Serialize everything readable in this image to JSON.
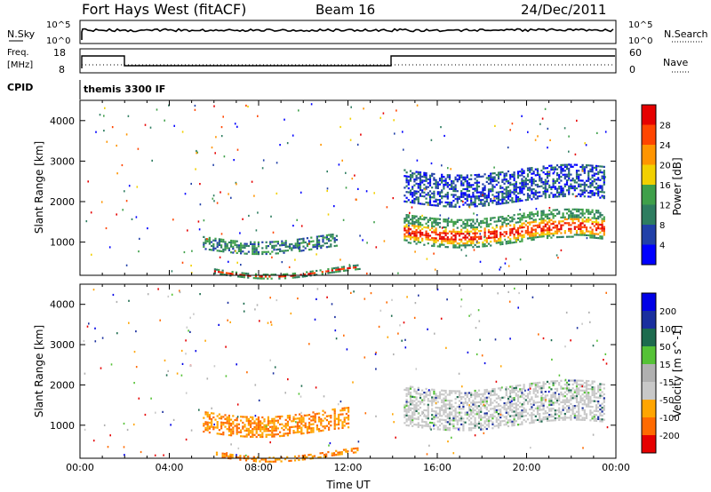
{
  "header": {
    "station": "Fort Hays West (fitACF)",
    "beam": "Beam 16",
    "date": "24/Dec/2011"
  },
  "noise_panel": {
    "left_label": "N.Sky",
    "left_ticks": [
      "10^5",
      "10^0"
    ],
    "right_label": "N.Search",
    "right_ticks": [
      "10^5",
      "10^0"
    ]
  },
  "freq_panel": {
    "left_label_1": "Freq.",
    "left_label_2": "[MHz]",
    "left_ticks": [
      "18",
      "8"
    ],
    "right_label": "Nave",
    "right_ticks": [
      "60",
      "0"
    ]
  },
  "cpid": {
    "label": "CPID",
    "value": "themis 3300 IF"
  },
  "colors": {
    "power": [
      "#0000ff",
      "#2140a8",
      "#2e7d60",
      "#3fa04a",
      "#f2d000",
      "#ff9500",
      "#ff4500",
      "#e60000"
    ],
    "velocity": [
      "#e60000",
      "#ff6a00",
      "#ffa500",
      "#c8c8c8",
      "#b0b0b0",
      "#55c236",
      "#1d6b4e",
      "#1a2f9e",
      "#0000e6"
    ]
  },
  "chart_data": [
    {
      "type": "heatmap",
      "name": "power",
      "ylabel": "Slant Range [km]",
      "colorbar_label": "Power [dB]",
      "colorbar_ticks": [
        "28",
        "24",
        "20",
        "16",
        "12",
        "8",
        "4"
      ],
      "ylim": [
        180,
        4500
      ],
      "y_ticks": [
        "1000",
        "2000",
        "3000",
        "4000"
      ],
      "xlim": [
        0,
        24
      ],
      "x_ticks": [
        "00:00",
        "04:00",
        "08:00",
        "12:00",
        "16:00",
        "20:00",
        "00:00"
      ],
      "xlabel": "Time UT",
      "features": [
        {
          "t_start": 5.5,
          "t_end": 11.5,
          "range_start": 850,
          "range_end": 1150,
          "level": "medium"
        },
        {
          "t_start": 14.5,
          "t_end": 23.5,
          "range_start": 1000,
          "range_end": 1700,
          "level": "high"
        },
        {
          "t_start": 14.5,
          "t_end": 23.5,
          "range_start": 2000,
          "range_end": 2800,
          "level": "low"
        },
        {
          "t_start": 6.0,
          "t_end": 12.5,
          "range_start": 250,
          "range_end": 350,
          "level": "high"
        }
      ]
    },
    {
      "type": "heatmap",
      "name": "velocity",
      "ylabel": "Slant Range [km]",
      "colorbar_label": "Velocity [m s^-1]",
      "colorbar_ticks": [
        "200",
        "100",
        "50",
        "15",
        "-15",
        "-50",
        "-100",
        "-200"
      ],
      "ylim": [
        180,
        4500
      ],
      "y_ticks": [
        "1000",
        "2000",
        "3000",
        "4000"
      ],
      "xlim": [
        0,
        24
      ],
      "x_ticks": [
        "00:00",
        "04:00",
        "08:00",
        "12:00",
        "16:00",
        "20:00",
        "00:00"
      ],
      "xlabel": "Time UT",
      "features": [
        {
          "t_start": 5.5,
          "t_end": 12.0,
          "range_start": 850,
          "range_end": 1350,
          "level": "negative"
        },
        {
          "t_start": 14.5,
          "t_end": 23.5,
          "range_start": 1000,
          "range_end": 2000,
          "level": "near-zero"
        },
        {
          "t_start": 6.0,
          "t_end": 12.5,
          "range_start": 250,
          "range_end": 350,
          "level": "negative"
        }
      ]
    }
  ]
}
